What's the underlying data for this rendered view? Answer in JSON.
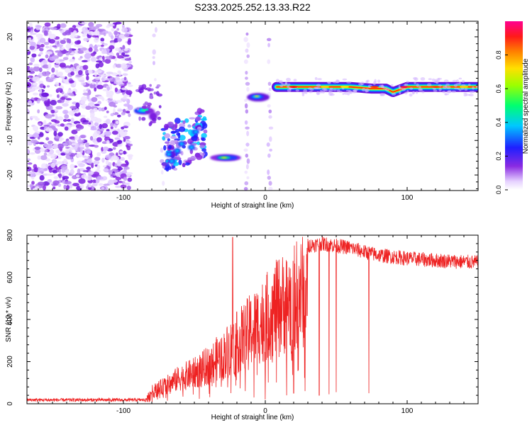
{
  "title": "S233.2025.252.13.33.R22",
  "colors": {
    "snr_line": "#ee2222",
    "peak_track_core": "#ee2200",
    "noise_purple": "#8a2be2",
    "axis": "#000000"
  },
  "chart_data": [
    {
      "type": "heatmap",
      "title": "S233.2025.252.13.33.R22",
      "xlabel": "Height of straight line (km)",
      "ylabel": "Frequency (Hz)",
      "xlim": [
        -168,
        150
      ],
      "ylim": [
        -24.5,
        24.5
      ],
      "xticks": [
        -100,
        0,
        100
      ],
      "xtick_labels": [
        "-100",
        "0",
        "100"
      ],
      "yticks": [
        -20,
        -10,
        0,
        10,
        20
      ],
      "ytick_labels": [
        "-20",
        "-10",
        "0",
        "10",
        "20"
      ],
      "colorbar": {
        "label": "Normalized spectral amplitude",
        "range": [
          0,
          1
        ],
        "ticks": [
          0.0,
          0.2,
          0.4,
          0.6,
          0.8
        ],
        "tick_labels": [
          "0.0",
          "0.2",
          "0.4",
          "0.6",
          "0.8"
        ],
        "colormap": "rainbow (white-violet-blue-cyan-green-yellow-red-magenta)"
      },
      "regions": [
        {
          "name": "noise",
          "x_range": [
            -168,
            -95
          ],
          "freq_range": [
            -24,
            24
          ],
          "amplitude": 0.12
        },
        {
          "name": "cluster-a",
          "x": -83,
          "freq": -1.5,
          "amplitude": 0.32
        },
        {
          "name": "cluster-b",
          "x_range": [
            -70,
            -45
          ],
          "freq_range": [
            -18,
            -7
          ],
          "amplitude": 0.18
        },
        {
          "name": "cluster-c",
          "x_range": [
            -30,
            -18
          ],
          "freq": -15,
          "amplitude": 0.3
        },
        {
          "name": "near-zero",
          "x_range": [
            -12,
            4
          ],
          "freq": 2.5,
          "amplitude": 0.6
        },
        {
          "name": "carrier",
          "x_range": [
            7,
            150
          ],
          "freq": 5.5,
          "amplitude": 0.9
        }
      ],
      "peak_track": {
        "x": [
          8,
          20,
          40,
          60,
          75,
          85,
          90,
          100,
          120,
          140,
          150
        ],
        "freq": [
          5.5,
          5.5,
          5.5,
          5.5,
          5.0,
          5.0,
          4.0,
          5.5,
          5.5,
          5.5,
          5.5
        ]
      }
    },
    {
      "type": "line",
      "xlabel": "Height of straight line (km)",
      "ylabel": "SNR (10 * v/v)",
      "xlim": [
        -168,
        150
      ],
      "ylim": [
        0,
        800
      ],
      "xticks": [
        -100,
        0,
        100
      ],
      "xtick_labels": [
        "-100",
        "0",
        "100"
      ],
      "yticks": [
        0,
        200,
        400,
        600,
        800
      ],
      "ytick_labels": [
        "0",
        "200",
        "400",
        "600",
        "800"
      ],
      "series": [
        {
          "name": "SNR",
          "envelope_x": [
            -168,
            -85,
            -80,
            -70,
            -60,
            -50,
            -40,
            -30,
            -20,
            -10,
            0,
            10,
            20,
            30,
            40,
            50,
            60,
            70,
            80,
            100,
            120,
            150
          ],
          "envelope_y": [
            18,
            18,
            80,
            120,
            170,
            200,
            250,
            320,
            400,
            480,
            560,
            640,
            700,
            750,
            760,
            750,
            740,
            720,
            705,
            690,
            680,
            670
          ],
          "dropouts": [
            {
              "x": -55,
              "y": 90
            },
            {
              "x": -30,
              "y": 110
            },
            {
              "x": -23,
              "y": 790
            },
            {
              "x": -17,
              "y": 200
            },
            {
              "x": -12,
              "y": 160
            },
            {
              "x": -8,
              "y": 30
            },
            {
              "x": 0,
              "y": 20
            },
            {
              "x": 15,
              "y": 40
            },
            {
              "x": 20,
              "y": 50
            },
            {
              "x": 28,
              "y": 60
            },
            {
              "x": 38,
              "y": 40
            },
            {
              "x": 45,
              "y": 45
            },
            {
              "x": 50,
              "y": 55
            },
            {
              "x": 73,
              "y": 50
            }
          ]
        }
      ]
    }
  ]
}
